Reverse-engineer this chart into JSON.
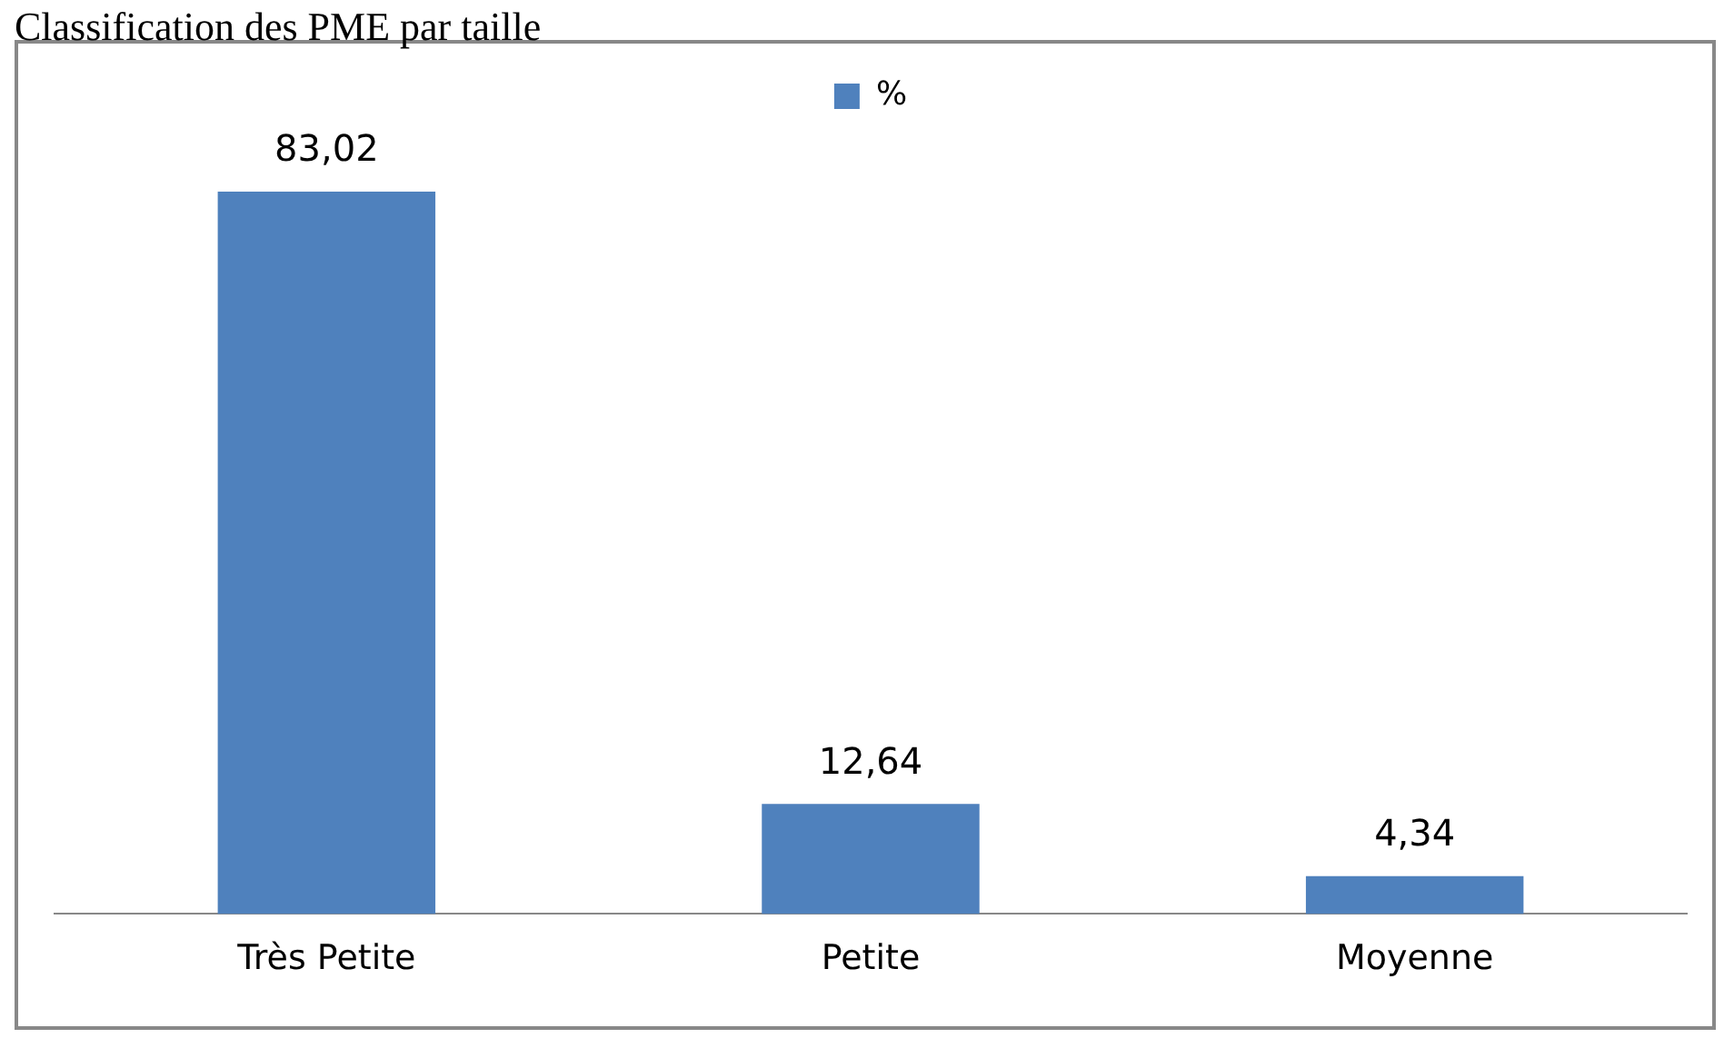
{
  "chart_data": {
    "type": "bar",
    "title": "Classification des PME par taille",
    "categories": [
      "Très Petite",
      "Petite",
      "Moyenne"
    ],
    "series": [
      {
        "name": "%",
        "color": "#4f81bd",
        "values": [
          83.02,
          12.64,
          4.34
        ],
        "value_labels": [
          "83,02",
          "12,64",
          "4,34"
        ]
      }
    ],
    "legend": "top",
    "grid": false
  }
}
